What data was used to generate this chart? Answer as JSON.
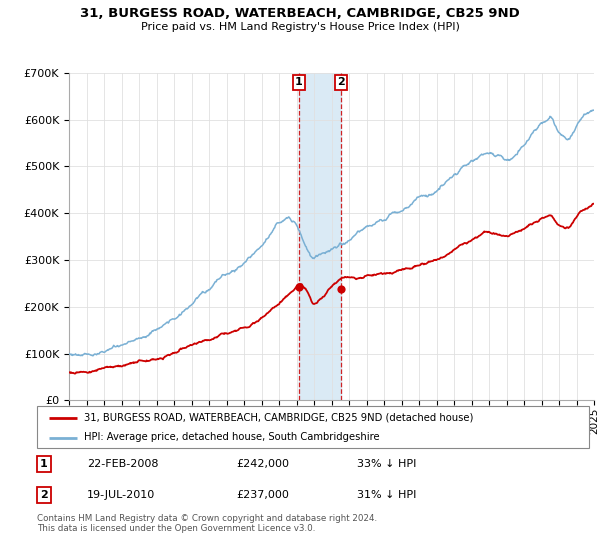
{
  "title": "31, BURGESS ROAD, WATERBEACH, CAMBRIDGE, CB25 9ND",
  "subtitle": "Price paid vs. HM Land Registry's House Price Index (HPI)",
  "hpi_label": "HPI: Average price, detached house, South Cambridgeshire",
  "property_label": "31, BURGESS ROAD, WATERBEACH, CAMBRIDGE, CB25 9ND (detached house)",
  "red_color": "#cc0000",
  "blue_color": "#7ab0d4",
  "shading_color": "#daeaf5",
  "background_color": "#ffffff",
  "grid_color": "#e0e0e0",
  "ylim": [
    0,
    700000
  ],
  "yticks": [
    0,
    100000,
    200000,
    300000,
    400000,
    500000,
    600000,
    700000
  ],
  "ytick_labels": [
    "£0",
    "£100K",
    "£200K",
    "£300K",
    "£400K",
    "£500K",
    "£600K",
    "£700K"
  ],
  "transaction1": {
    "date": "22-FEB-2008",
    "price": 242000,
    "label": "1",
    "rel_hpi": "33% ↓ HPI"
  },
  "transaction2": {
    "date": "19-JUL-2010",
    "price": 237000,
    "label": "2",
    "rel_hpi": "31% ↓ HPI"
  },
  "footer": "Contains HM Land Registry data © Crown copyright and database right 2024.\nThis data is licensed under the Open Government Licence v3.0.",
  "t1_year": 2008.14,
  "t2_year": 2010.55
}
